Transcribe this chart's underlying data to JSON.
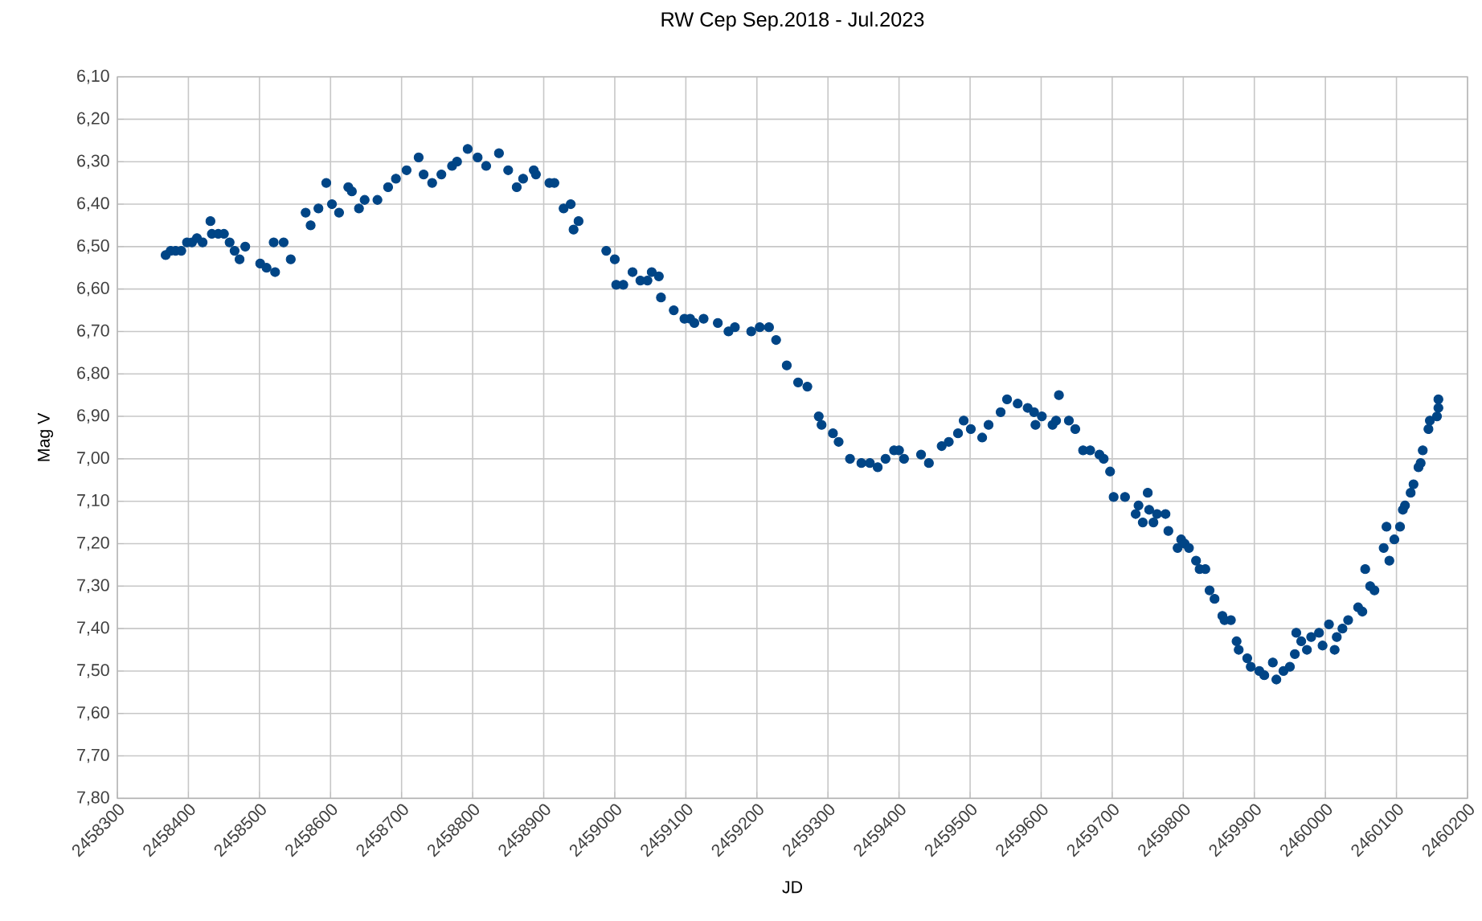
{
  "chart_data": {
    "type": "scatter",
    "title": "RW Cep Sep.2018 - Jul.2023",
    "xlabel": "JD",
    "ylabel": "Mag V",
    "grid": true,
    "marker": "circle",
    "xlim": [
      2458300,
      2460200
    ],
    "xticks": [
      2458300,
      2458400,
      2458500,
      2458600,
      2458700,
      2458800,
      2458900,
      2459000,
      2459100,
      2459200,
      2459300,
      2459400,
      2459500,
      2459600,
      2459700,
      2459800,
      2459900,
      2460000,
      2460100,
      2460200
    ],
    "ylim": [
      7.8,
      6.1
    ],
    "yticks": [
      {
        "value": 6.1,
        "label": "6,10"
      },
      {
        "value": 6.2,
        "label": "6,20"
      },
      {
        "value": 6.3,
        "label": "6,30"
      },
      {
        "value": 6.4,
        "label": "6,40"
      },
      {
        "value": 6.5,
        "label": "6,50"
      },
      {
        "value": 6.6,
        "label": "6,60"
      },
      {
        "value": 6.7,
        "label": "6,70"
      },
      {
        "value": 6.8,
        "label": "6,80"
      },
      {
        "value": 6.9,
        "label": "6,90"
      },
      {
        "value": 7.0,
        "label": "7,00"
      },
      {
        "value": 7.1,
        "label": "7,10"
      },
      {
        "value": 7.2,
        "label": "7,20"
      },
      {
        "value": 7.3,
        "label": "7,30"
      },
      {
        "value": 7.4,
        "label": "7,40"
      },
      {
        "value": 7.5,
        "label": "7,50"
      },
      {
        "value": 7.6,
        "label": "7,60"
      },
      {
        "value": 7.7,
        "label": "7,70"
      },
      {
        "value": 7.8,
        "label": "7,80"
      }
    ],
    "series": [
      {
        "color": "#004586",
        "x": [
          2458368,
          2458375,
          2458382,
          2458390,
          2458398,
          2458405,
          2458412,
          2458420,
          2458431,
          2458433,
          2458442,
          2458450,
          2458458,
          2458465,
          2458472,
          2458480,
          2458501,
          2458510,
          2458522,
          2458520,
          2458534,
          2458544,
          2458565,
          2458572,
          2458583,
          2458594,
          2458602,
          2458612,
          2458625,
          2458630,
          2458640,
          2458648,
          2458666,
          2458681,
          2458692,
          2458707,
          2458724,
          2458731,
          2458743,
          2458756,
          2458771,
          2458778,
          2458793,
          2458807,
          2458819,
          2458837,
          2458850,
          2458862,
          2458871,
          2458886,
          2458889,
          2458908,
          2458915,
          2458928,
          2458938,
          2458942,
          2458949,
          2458988,
          2459000,
          2459002,
          2459012,
          2459025,
          2459036,
          2459046,
          2459052,
          2459062,
          2459065,
          2459083,
          2459098,
          2459106,
          2459112,
          2459125,
          2459145,
          2459160,
          2459169,
          2459192,
          2459204,
          2459217,
          2459227,
          2459242,
          2459258,
          2459271,
          2459287,
          2459291,
          2459307,
          2459315,
          2459331,
          2459347,
          2459359,
          2459370,
          2459381,
          2459393,
          2459400,
          2459407,
          2459431,
          2459442,
          2459460,
          2459470,
          2459483,
          2459491,
          2459501,
          2459517,
          2459526,
          2459543,
          2459552,
          2459567,
          2459581,
          2459590,
          2459592,
          2459601,
          2459616,
          2459621,
          2459625,
          2459639,
          2459648,
          2459659,
          2459669,
          2459682,
          2459688,
          2459697,
          2459702,
          2459718,
          2459733,
          2459737,
          2459743,
          2459750,
          2459752,
          2459758,
          2459763,
          2459775,
          2459779,
          2459792,
          2459797,
          2459802,
          2459808,
          2459818,
          2459823,
          2459831,
          2459837,
          2459844,
          2459855,
          2459858,
          2459867,
          2459875,
          2459878,
          2459890,
          2459895,
          2459907,
          2459914,
          2459926,
          2459931,
          2459941,
          2459950,
          2459957,
          2459959,
          2459966,
          2459974,
          2459980,
          2459991,
          2459996,
          2460005,
          2460013,
          2460016,
          2460024,
          2460032,
          2460046,
          2460052,
          2460056,
          2460063,
          2460069,
          2460082,
          2460086,
          2460090,
          2460097,
          2460105,
          2460109,
          2460112,
          2460120,
          2460124,
          2460131,
          2460134,
          2460137,
          2460145,
          2460147,
          2460157,
          2460159,
          2460159
        ],
        "values": [
          6.52,
          6.51,
          6.51,
          6.51,
          6.49,
          6.49,
          6.48,
          6.49,
          6.44,
          6.47,
          6.47,
          6.47,
          6.49,
          6.51,
          6.53,
          6.5,
          6.54,
          6.55,
          6.56,
          6.49,
          6.49,
          6.53,
          6.42,
          6.45,
          6.41,
          6.35,
          6.4,
          6.42,
          6.36,
          6.37,
          6.41,
          6.39,
          6.39,
          6.36,
          6.34,
          6.32,
          6.29,
          6.33,
          6.35,
          6.33,
          6.31,
          6.3,
          6.27,
          6.29,
          6.31,
          6.28,
          6.32,
          6.36,
          6.34,
          6.32,
          6.33,
          6.35,
          6.35,
          6.41,
          6.4,
          6.46,
          6.44,
          6.51,
          6.53,
          6.59,
          6.59,
          6.56,
          6.58,
          6.58,
          6.56,
          6.57,
          6.62,
          6.65,
          6.67,
          6.67,
          6.68,
          6.67,
          6.68,
          6.7,
          6.69,
          6.7,
          6.69,
          6.69,
          6.72,
          6.78,
          6.82,
          6.83,
          6.9,
          6.92,
          6.94,
          6.96,
          7.0,
          7.01,
          7.01,
          7.02,
          7.0,
          6.98,
          6.98,
          7.0,
          6.99,
          7.01,
          6.97,
          6.96,
          6.94,
          6.91,
          6.93,
          6.95,
          6.92,
          6.89,
          6.86,
          6.87,
          6.88,
          6.89,
          6.92,
          6.9,
          6.92,
          6.91,
          6.85,
          6.91,
          6.93,
          6.98,
          6.98,
          6.99,
          7.0,
          7.03,
          7.09,
          7.09,
          7.13,
          7.11,
          7.15,
          7.08,
          7.12,
          7.15,
          7.13,
          7.13,
          7.17,
          7.21,
          7.19,
          7.2,
          7.21,
          7.24,
          7.26,
          7.26,
          7.31,
          7.33,
          7.37,
          7.38,
          7.38,
          7.43,
          7.45,
          7.47,
          7.49,
          7.5,
          7.51,
          7.48,
          7.52,
          7.5,
          7.49,
          7.46,
          7.41,
          7.43,
          7.45,
          7.42,
          7.41,
          7.44,
          7.39,
          7.45,
          7.42,
          7.4,
          7.38,
          7.35,
          7.36,
          7.26,
          7.3,
          7.31,
          7.21,
          7.16,
          7.24,
          7.19,
          7.16,
          7.12,
          7.11,
          7.08,
          7.06,
          7.02,
          7.01,
          6.98,
          6.93,
          6.91,
          6.9,
          6.88,
          6.86
        ]
      }
    ]
  }
}
